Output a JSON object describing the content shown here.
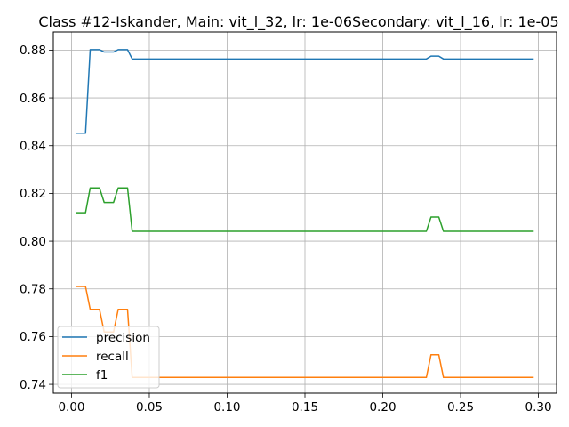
{
  "chart_data": {
    "type": "line",
    "title": "Class #12-Iskander, Main: vit_l_32, lr: 1e-06Secondary: vit_l_16, lr: 1e-05",
    "xlabel": "",
    "ylabel": "",
    "xlim": [
      -0.0117,
      0.3117
    ],
    "ylim": [
      0.7363,
      0.8876
    ],
    "grid": true,
    "legend_position": "lower-left",
    "x_ticks": [
      0.0,
      0.05,
      0.1,
      0.15,
      0.2,
      0.25,
      0.3
    ],
    "x_tick_labels": [
      "0.00",
      "0.05",
      "0.10",
      "0.15",
      "0.20",
      "0.25",
      "0.30"
    ],
    "y_ticks": [
      0.74,
      0.76,
      0.78,
      0.8,
      0.82,
      0.84,
      0.86,
      0.88
    ],
    "y_tick_labels": [
      "0.74",
      "0.76",
      "0.78",
      "0.80",
      "0.82",
      "0.84",
      "0.86",
      "0.88"
    ],
    "x": [
      0.003,
      0.009,
      0.012,
      0.018,
      0.021,
      0.027,
      0.03,
      0.036,
      0.039,
      0.045,
      0.05,
      0.1,
      0.15,
      0.2,
      0.228,
      0.231,
      0.236,
      0.239,
      0.25,
      0.297
    ],
    "series": [
      {
        "name": "precision",
        "color": "#1f77b4",
        "values": [
          0.8452,
          0.8452,
          0.8802,
          0.8802,
          0.8792,
          0.8792,
          0.8802,
          0.8802,
          0.8763,
          0.8763,
          0.8763,
          0.8763,
          0.8763,
          0.8763,
          0.8763,
          0.8775,
          0.8775,
          0.8763,
          0.8763,
          0.8763
        ]
      },
      {
        "name": "recall",
        "color": "#ff7f0e",
        "values": [
          0.781,
          0.781,
          0.7714,
          0.7714,
          0.7619,
          0.7619,
          0.7714,
          0.7714,
          0.7429,
          0.7429,
          0.7429,
          0.7429,
          0.7429,
          0.7429,
          0.7429,
          0.7524,
          0.7524,
          0.7429,
          0.7429,
          0.7429
        ]
      },
      {
        "name": "f1",
        "color": "#2ca02c",
        "values": [
          0.8119,
          0.8119,
          0.8223,
          0.8223,
          0.8162,
          0.8162,
          0.8223,
          0.8223,
          0.8041,
          0.8041,
          0.8041,
          0.8041,
          0.8041,
          0.8041,
          0.8041,
          0.8101,
          0.8101,
          0.8041,
          0.8041,
          0.8041
        ]
      }
    ]
  }
}
